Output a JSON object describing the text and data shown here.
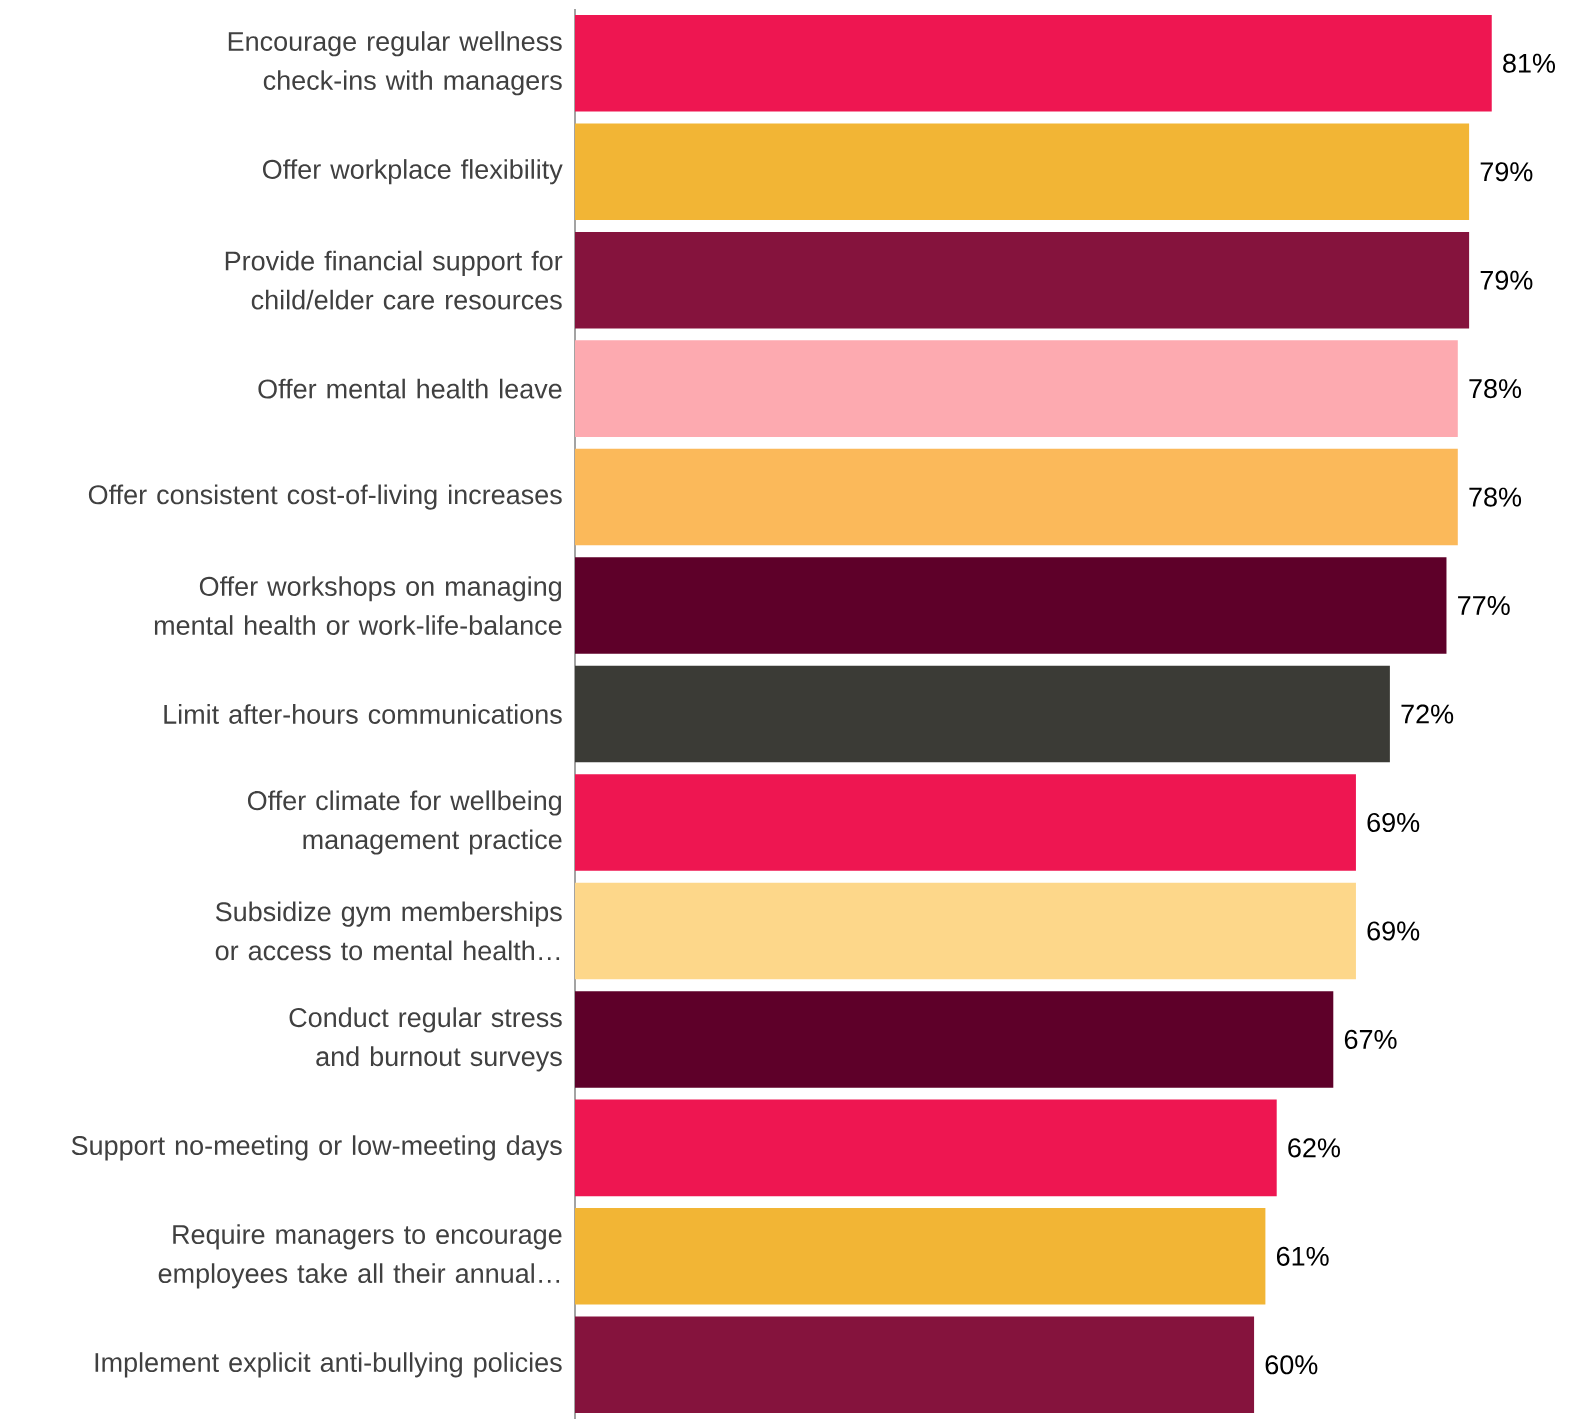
{
  "chart_data": {
    "type": "bar",
    "orientation": "horizontal",
    "categories": [
      "Encourage regular wellness check-ins with managers",
      "Offer workplace flexibility",
      "Provide financial support for child/elder care resources",
      "Offer mental health leave",
      "Offer consistent cost-of-living increases",
      "Offer workshops on managing mental health or work-life-balance",
      "Limit after-hours communications",
      "Offer climate for wellbeing management practice",
      "Subsidize gym memberships or access to mental health…",
      "Conduct regular stress and burnout surveys",
      "Support no-meeting or low-meeting days",
      "Require managers to encourage employees take all their annual…",
      "Implement explicit anti-bullying policies"
    ],
    "values": [
      81,
      79,
      79,
      78,
      78,
      77,
      72,
      69,
      69,
      67,
      62,
      61,
      60
    ],
    "value_labels": [
      "81%",
      "79%",
      "79%",
      "78%",
      "78%",
      "77%",
      "72%",
      "69%",
      "69%",
      "67%",
      "62%",
      "61%",
      "60%"
    ],
    "colors": [
      "#ee1651",
      "#f2b535",
      "#85133d",
      "#fdaab0",
      "#fbb95a",
      "#5e0029",
      "#3b3b36",
      "#ee1651",
      "#fdd78a",
      "#5e0029",
      "#ee1651",
      "#f2b535",
      "#85133d"
    ]
  }
}
